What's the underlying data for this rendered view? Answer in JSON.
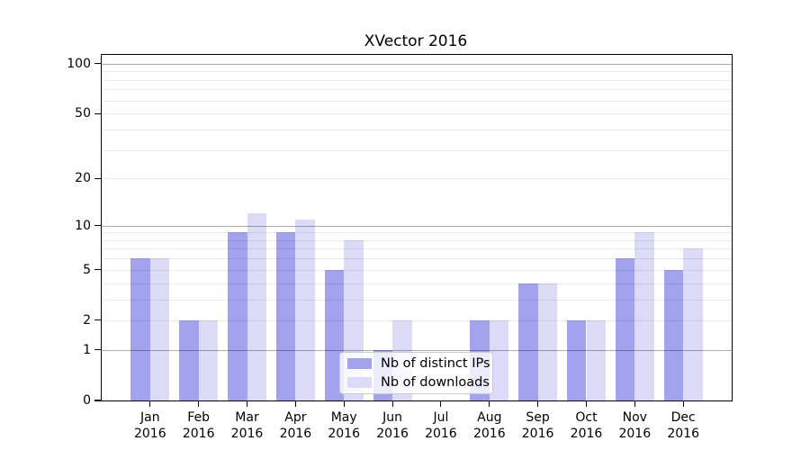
{
  "title": "XVector 2016",
  "chart_data": {
    "type": "bar",
    "title": "XVector 2016",
    "categories": [
      "Jan",
      "Feb",
      "Mar",
      "Apr",
      "May",
      "Jun",
      "Jul",
      "Aug",
      "Sep",
      "Oct",
      "Nov",
      "Dec"
    ],
    "year_label": "2016",
    "series": [
      {
        "name": "Nb of distinct IPs",
        "color": "#a2a2ed",
        "values": [
          6,
          2,
          9,
          9,
          5,
          1,
          0,
          2,
          4,
          2,
          6,
          5
        ]
      },
      {
        "name": "Nb of downloads",
        "color": "#dbdbf7",
        "values": [
          6,
          2,
          12,
          11,
          8,
          2,
          0,
          2,
          4,
          2,
          9,
          7
        ]
      }
    ],
    "xlabel": "",
    "ylabel": "",
    "yscale": "log1p",
    "ylim": [
      0,
      113
    ],
    "y_ticks": [
      0,
      1,
      2,
      5,
      10,
      20,
      50,
      100
    ],
    "y_major_gridlines": [
      1,
      10,
      100
    ],
    "y_minor_gridlines": [
      2,
      3,
      4,
      5,
      6,
      7,
      8,
      9,
      20,
      30,
      40,
      50,
      60,
      70,
      80,
      90
    ],
    "grid": "on",
    "legend_position": "lower center",
    "bar_group_width_ratio": 0.8,
    "colors": {
      "spine": "#000000",
      "major_grid": "#a6a6a6",
      "minor_grid": "#e8e8e8",
      "legend_border": "#cccccc",
      "background": "#ffffff"
    }
  }
}
